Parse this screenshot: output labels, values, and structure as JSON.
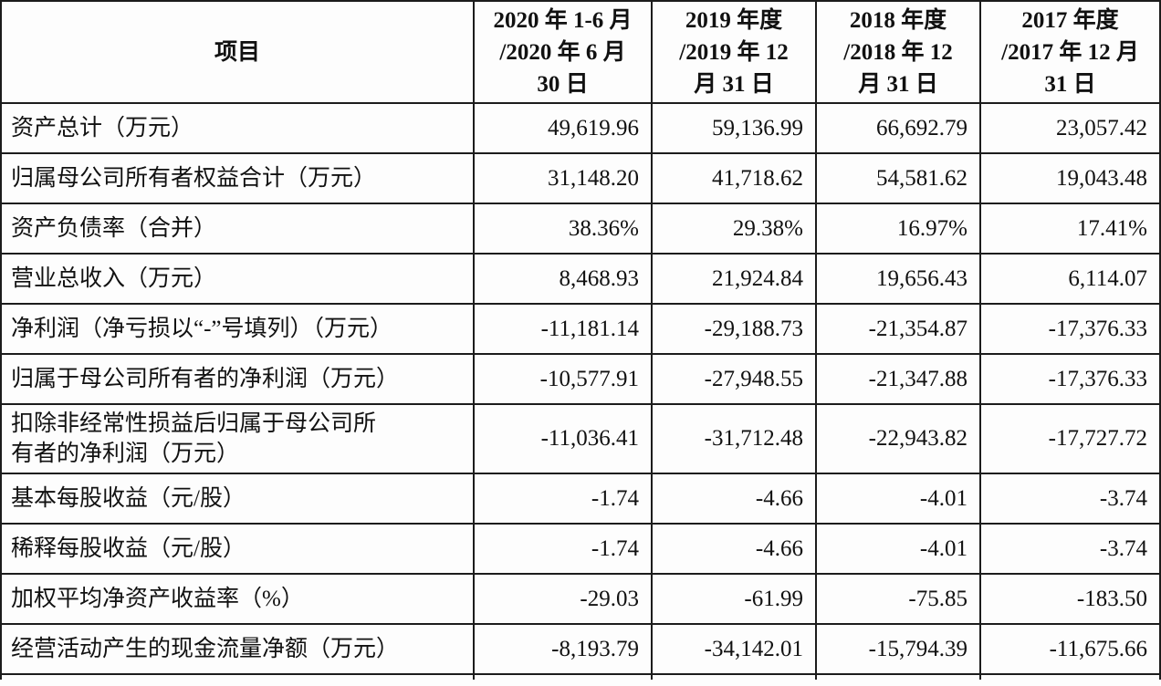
{
  "table": {
    "columns": [
      {
        "id": "item",
        "label": "项目"
      },
      {
        "id": "h2020",
        "label": "2020 年 1-6 月\n/2020 年 6 月\n30 日"
      },
      {
        "id": "h2019",
        "label": "2019 年度\n/2019 年 12\n月 31 日"
      },
      {
        "id": "h2018",
        "label": "2018 年度\n/2018 年 12\n月 31 日"
      },
      {
        "id": "h2017",
        "label": "2017 年度\n/2017 年 12 月\n31 日"
      }
    ],
    "rows": [
      {
        "label": "资产总计（万元）",
        "values": [
          "49,619.96",
          "59,136.99",
          "66,692.79",
          "23,057.42"
        ]
      },
      {
        "label": "归属母公司所有者权益合计（万元）",
        "values": [
          "31,148.20",
          "41,718.62",
          "54,581.62",
          "19,043.48"
        ]
      },
      {
        "label": "资产负债率（合并）",
        "values": [
          "38.36%",
          "29.38%",
          "16.97%",
          "17.41%"
        ]
      },
      {
        "label": "营业总收入（万元）",
        "values": [
          "8,468.93",
          "21,924.84",
          "19,656.43",
          "6,114.07"
        ]
      },
      {
        "label": "净利润（净亏损以“-”号填列）（万元）",
        "values": [
          "-11,181.14",
          "-29,188.73",
          "-21,354.87",
          "-17,376.33"
        ]
      },
      {
        "label": "归属于母公司所有者的净利润（万元）",
        "values": [
          "-10,577.91",
          "-27,948.55",
          "-21,347.88",
          "-17,376.33"
        ]
      },
      {
        "label": "扣除非经常性损益后归属于母公司所\n有者的净利润（万元）",
        "values": [
          "-11,036.41",
          "-31,712.48",
          "-22,943.82",
          "-17,727.72"
        ]
      },
      {
        "label": "基本每股收益（元/股）",
        "values": [
          "-1.74",
          "-4.66",
          "-4.01",
          "-3.74"
        ]
      },
      {
        "label": "稀释每股收益（元/股）",
        "values": [
          "-1.74",
          "-4.66",
          "-4.01",
          "-3.74"
        ]
      },
      {
        "label": "加权平均净资产收益率（%）",
        "values": [
          "-29.03",
          "-61.99",
          "-75.85",
          "-183.50"
        ]
      },
      {
        "label": "经营活动产生的现金流量净额（万元）",
        "values": [
          "-8,193.79",
          "-34,142.01",
          "-15,794.39",
          "-11,675.66"
        ]
      }
    ]
  }
}
